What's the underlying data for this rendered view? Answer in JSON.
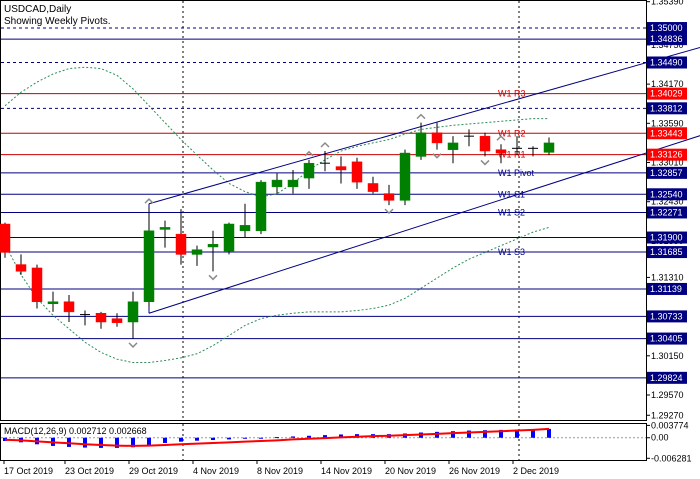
{
  "header": {
    "symbol": "USDCAD,Daily",
    "subtitle": "Showing Weekly Pivots."
  },
  "colors": {
    "bull": "#008000",
    "bear": "#ff0000",
    "pivot_line": "#000080",
    "resistance_line": "#cc0000",
    "support_line": "#000080",
    "envelope": "#2e8b57",
    "macd_hist": "#0000ff",
    "macd_signal": "#ff0000",
    "price_tag_blue": "#000080",
    "price_tag_red": "#ff0000"
  },
  "chart_data": [
    {
      "type": "candlestick",
      "symbol": "USDCAD",
      "timeframe": "Daily",
      "ylim": [
        1.292,
        1.354
      ],
      "y_ticks": [
        "1.35390",
        "1.34750",
        "1.34170",
        "1.33590",
        "1.33010",
        "1.32430",
        "1.31850",
        "1.31310",
        "1.30730",
        "1.30150",
        "1.29570",
        "1.29270"
      ],
      "x_ticks": [
        "17 Oct 2019",
        "23 Oct 2019",
        "29 Oct 2019",
        "4 Nov 2019",
        "8 Nov 2019",
        "14 Nov 2019",
        "20 Nov 2019",
        "26 Nov 2019",
        "2 Dec 2019"
      ],
      "candles": [
        {
          "o": 1.321,
          "h": 1.3212,
          "l": 1.316,
          "c": 1.3168
        },
        {
          "o": 1.315,
          "h": 1.3165,
          "l": 1.3135,
          "c": 1.314
        },
        {
          "o": 1.3145,
          "h": 1.315,
          "l": 1.3085,
          "c": 1.3095
        },
        {
          "o": 1.3092,
          "h": 1.311,
          "l": 1.308,
          "c": 1.3095
        },
        {
          "o": 1.3095,
          "h": 1.3105,
          "l": 1.3065,
          "c": 1.308
        },
        {
          "o": 1.3076,
          "h": 1.3082,
          "l": 1.306,
          "c": 1.3074
        },
        {
          "o": 1.3078,
          "h": 1.308,
          "l": 1.3055,
          "c": 1.3065
        },
        {
          "o": 1.307,
          "h": 1.3078,
          "l": 1.3058,
          "c": 1.3064
        },
        {
          "o": 1.3065,
          "h": 1.311,
          "l": 1.304,
          "c": 1.3095
        },
        {
          "o": 1.3095,
          "h": 1.3235,
          "l": 1.3088,
          "c": 1.32
        },
        {
          "o": 1.3202,
          "h": 1.3215,
          "l": 1.3175,
          "c": 1.3205
        },
        {
          "o": 1.3195,
          "h": 1.3232,
          "l": 1.315,
          "c": 1.3165
        },
        {
          "o": 1.3165,
          "h": 1.3178,
          "l": 1.3148,
          "c": 1.3172
        },
        {
          "o": 1.3176,
          "h": 1.32,
          "l": 1.314,
          "c": 1.318
        },
        {
          "o": 1.317,
          "h": 1.3212,
          "l": 1.3165,
          "c": 1.321
        },
        {
          "o": 1.32,
          "h": 1.324,
          "l": 1.319,
          "c": 1.3208
        },
        {
          "o": 1.32,
          "h": 1.3275,
          "l": 1.3195,
          "c": 1.3272
        },
        {
          "o": 1.3265,
          "h": 1.3285,
          "l": 1.3255,
          "c": 1.3275
        },
        {
          "o": 1.3265,
          "h": 1.329,
          "l": 1.3255,
          "c": 1.3275
        },
        {
          "o": 1.3278,
          "h": 1.3305,
          "l": 1.3262,
          "c": 1.33
        },
        {
          "o": 1.33,
          "h": 1.3318,
          "l": 1.3288,
          "c": 1.3298
        },
        {
          "o": 1.3295,
          "h": 1.331,
          "l": 1.327,
          "c": 1.329
        },
        {
          "o": 1.3302,
          "h": 1.3308,
          "l": 1.3262,
          "c": 1.3272
        },
        {
          "o": 1.327,
          "h": 1.328,
          "l": 1.3255,
          "c": 1.3258
        },
        {
          "o": 1.3255,
          "h": 1.3268,
          "l": 1.3238,
          "c": 1.3245
        },
        {
          "o": 1.3245,
          "h": 1.332,
          "l": 1.3238,
          "c": 1.3315
        },
        {
          "o": 1.331,
          "h": 1.336,
          "l": 1.3305,
          "c": 1.3345
        },
        {
          "o": 1.3345,
          "h": 1.336,
          "l": 1.332,
          "c": 1.333
        },
        {
          "o": 1.332,
          "h": 1.334,
          "l": 1.33,
          "c": 1.333
        },
        {
          "o": 1.334,
          "h": 1.335,
          "l": 1.3325,
          "c": 1.334
        },
        {
          "o": 1.334,
          "h": 1.3345,
          "l": 1.331,
          "c": 1.3318
        },
        {
          "o": 1.332,
          "h": 1.3328,
          "l": 1.33,
          "c": 1.3315
        },
        {
          "o": 1.332,
          "h": 1.334,
          "l": 1.3312,
          "c": 1.3322
        },
        {
          "o": 1.332,
          "h": 1.3325,
          "l": 1.331,
          "c": 1.3322
        },
        {
          "o": 1.3316,
          "h": 1.3338,
          "l": 1.3312,
          "c": 1.333
        }
      ],
      "envelope_upper": [
        1.3385,
        1.3405,
        1.342,
        1.3432,
        1.344,
        1.3442,
        1.344,
        1.343,
        1.341,
        1.3385,
        1.336,
        1.3335,
        1.3312,
        1.329,
        1.327,
        1.3258,
        1.325,
        1.3255,
        1.327,
        1.329,
        1.3305,
        1.3318,
        1.3325,
        1.333,
        1.3335,
        1.3343,
        1.335,
        1.3353,
        1.3356,
        1.3358,
        1.336,
        1.3362,
        1.3364,
        1.3366,
        1.3366
      ],
      "envelope_lower": [
        1.318,
        1.3135,
        1.31,
        1.3075,
        1.3055,
        1.3035,
        1.302,
        1.301,
        1.3005,
        1.3005,
        1.3008,
        1.3012,
        1.3018,
        1.303,
        1.3045,
        1.306,
        1.307,
        1.3075,
        1.3078,
        1.308,
        1.308,
        1.308,
        1.3082,
        1.3085,
        1.309,
        1.31,
        1.3115,
        1.313,
        1.3145,
        1.3158,
        1.3168,
        1.3178,
        1.3188,
        1.3198,
        1.3205
      ],
      "levels": [
        {
          "price": "1.35000",
          "label": "",
          "kind": "support",
          "dashed": true,
          "tag": "blue"
        },
        {
          "price": "1.34836",
          "label": "",
          "kind": "support",
          "dashed": false,
          "tag": "blue"
        },
        {
          "price": "1.34490",
          "label": "",
          "kind": "support",
          "dashed": true,
          "tag": "blue"
        },
        {
          "price": "1.34029",
          "label": "W1 R3",
          "kind": "resistance",
          "dashed": false,
          "tag": "red"
        },
        {
          "price": "1.33812",
          "label": "",
          "kind": "support",
          "dashed": true,
          "tag": "blue"
        },
        {
          "price": "1.33443",
          "label": "W1 R2",
          "kind": "resistance",
          "dashed": false,
          "tag": "red"
        },
        {
          "price": "1.33126",
          "label": "W1 R1",
          "kind": "resistance",
          "dashed": false,
          "tag": "red"
        },
        {
          "price": "1.32857",
          "label": "W1 Pivot",
          "kind": "pivot",
          "dashed": false,
          "tag": "blue"
        },
        {
          "price": "1.32540",
          "label": "W1 S1",
          "kind": "support",
          "dashed": false,
          "tag": "blue"
        },
        {
          "price": "1.32271",
          "label": "W1 S2",
          "kind": "support",
          "dashed": false,
          "tag": "blue"
        },
        {
          "price": "1.31900",
          "label": "",
          "kind": "support",
          "dashed": false,
          "tag": "blue"
        },
        {
          "price": "1.31685",
          "label": "W1 S3",
          "kind": "support",
          "dashed": false,
          "tag": "blue"
        },
        {
          "price": "1.31139",
          "label": "",
          "kind": "support",
          "dashed": false,
          "tag": "blue"
        },
        {
          "price": "1.30733",
          "label": "",
          "kind": "support",
          "dashed": false,
          "tag": "blue"
        },
        {
          "price": "1.30405",
          "label": "",
          "kind": "support",
          "dashed": false,
          "tag": "blue"
        },
        {
          "price": "1.29824",
          "label": "",
          "kind": "support",
          "dashed": false,
          "tag": "blue"
        }
      ],
      "channel": {
        "upper": [
          {
            "i": 9,
            "price": 1.324
          },
          {
            "i": 44,
            "price": 1.3475
          }
        ],
        "lower": [
          {
            "i": 9,
            "price": 1.3078
          },
          {
            "i": 44,
            "price": 1.3345
          }
        ]
      }
    },
    {
      "type": "bar",
      "indicator": "MACD",
      "title": "MACD(12,26,9) 0.002712 0.002668",
      "y_ticks": [
        "0.003774",
        "0.00",
        "-0.006281"
      ],
      "ylim": [
        -0.0068,
        0.0042
      ],
      "macd": [
        -0.001,
        -0.0014,
        -0.002,
        -0.0025,
        -0.0028,
        -0.003,
        -0.0031,
        -0.0031,
        -0.0029,
        -0.0022,
        -0.0016,
        -0.0012,
        -0.0009,
        -0.0007,
        -0.0005,
        -0.0003,
        -0.0001,
        0.0002,
        0.0004,
        0.0006,
        0.0008,
        0.001,
        0.0011,
        0.0011,
        0.0011,
        0.0013,
        0.0016,
        0.0018,
        0.002,
        0.0022,
        0.0023,
        0.0024,
        0.0025,
        0.0026,
        0.0027
      ],
      "signal": [
        -0.0006,
        -0.0008,
        -0.0011,
        -0.0014,
        -0.0017,
        -0.002,
        -0.0022,
        -0.0024,
        -0.0025,
        -0.0024,
        -0.0022,
        -0.002,
        -0.0018,
        -0.0016,
        -0.0014,
        -0.0012,
        -0.001,
        -0.0008,
        -0.0005,
        -0.0003,
        -0.0001,
        0.0001,
        0.0003,
        0.0005,
        0.0006,
        0.0008,
        0.001,
        0.0012,
        0.0014,
        0.0016,
        0.0018,
        0.002,
        0.0022,
        0.0024,
        0.0027
      ]
    }
  ]
}
